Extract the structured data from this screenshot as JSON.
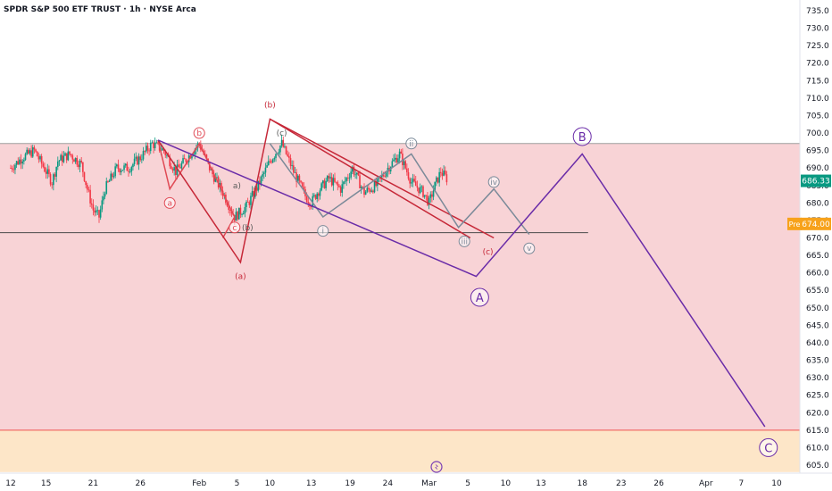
{
  "chart_data": {
    "type": "candlestick",
    "title": "SPDR S&P 500 ETF TRUST · 1h · NYSE Arca",
    "ylim": [
      603,
      738
    ],
    "y_ticks": [
      605,
      610,
      615,
      620,
      625,
      630,
      635,
      640,
      645,
      650,
      655,
      660,
      665,
      670,
      675,
      680,
      685,
      690,
      695,
      700,
      705,
      710,
      715,
      720,
      725,
      730,
      735
    ],
    "x_ticks": [
      {
        "label": "12",
        "t": 0
      },
      {
        "label": "15",
        "t": 3
      },
      {
        "label": "21",
        "t": 7
      },
      {
        "label": "26",
        "t": 11
      },
      {
        "label": "Feb",
        "t": 16
      },
      {
        "label": "5",
        "t": 19.2
      },
      {
        "label": "10",
        "t": 22
      },
      {
        "label": "13",
        "t": 25.5
      },
      {
        "label": "19",
        "t": 28.8
      },
      {
        "label": "24",
        "t": 32
      },
      {
        "label": "Mar",
        "t": 35.5
      },
      {
        "label": "5",
        "t": 38.8
      },
      {
        "label": "10",
        "t": 42
      },
      {
        "label": "13",
        "t": 45
      },
      {
        "label": "18",
        "t": 48.5
      },
      {
        "label": "23",
        "t": 51.8
      },
      {
        "label": "26",
        "t": 55
      },
      {
        "label": "Apr",
        "t": 59
      },
      {
        "label": "7",
        "t": 62
      },
      {
        "label": "10",
        "t": 65
      }
    ],
    "current_price": "686.33",
    "pre_label": "Pre",
    "pre_price": "674.00",
    "zones": [
      {
        "from": 615,
        "to": 697,
        "color": "#f8d3d6"
      },
      {
        "from": 603,
        "to": 615,
        "color": "#fde6c8"
      }
    ],
    "lines": [
      {
        "y": 697,
        "color": "#9e9e9e"
      },
      {
        "y": 615,
        "color": "#ef5350"
      },
      {
        "y": 671.5,
        "color": "#4a4a4a",
        "t_end": 49
      }
    ],
    "price_path": [
      [
        0,
        690
      ],
      [
        1,
        693
      ],
      [
        2,
        695
      ],
      [
        3,
        689
      ],
      [
        3.5,
        686
      ],
      [
        4,
        692
      ],
      [
        5,
        694
      ],
      [
        6,
        691
      ],
      [
        6.5,
        684
      ],
      [
        7,
        678
      ],
      [
        7.5,
        676
      ],
      [
        8,
        684
      ],
      [
        9,
        690
      ],
      [
        10,
        690
      ],
      [
        11,
        693
      ],
      [
        12,
        697
      ],
      [
        13,
        695
      ],
      [
        14,
        689
      ],
      [
        15,
        693
      ],
      [
        16,
        697
      ],
      [
        17,
        689
      ],
      [
        18,
        683
      ],
      [
        19,
        676
      ],
      [
        20,
        679
      ],
      [
        21,
        685
      ],
      [
        22,
        692
      ],
      [
        23,
        697
      ],
      [
        24,
        689
      ],
      [
        25,
        682
      ],
      [
        25.5,
        680
      ],
      [
        26,
        683
      ],
      [
        27,
        687
      ],
      [
        28,
        684
      ],
      [
        29,
        690
      ],
      [
        30,
        683
      ],
      [
        31,
        685
      ],
      [
        32,
        690
      ],
      [
        33,
        694
      ],
      [
        34,
        686
      ],
      [
        35,
        683
      ],
      [
        35.5,
        680
      ],
      [
        36,
        685
      ],
      [
        36.5,
        689
      ],
      [
        37,
        687
      ]
    ],
    "waves": [
      {
        "name": "red-a-b-c",
        "color": "#e04a55",
        "points": [
          [
            12.5,
            698
          ],
          [
            13.5,
            684
          ],
          [
            16,
            697
          ],
          [
            19,
            676
          ],
          [
            18,
            670
          ]
        ]
      },
      {
        "name": "red-major",
        "color": "#c62838",
        "points": [
          [
            12.5,
            698
          ],
          [
            19.5,
            663
          ],
          [
            22,
            704
          ],
          [
            39,
            670
          ]
        ]
      },
      {
        "name": "red-upper-channel",
        "color": "#c62838",
        "points": [
          [
            22,
            704
          ],
          [
            41,
            670
          ]
        ]
      },
      {
        "name": "grey-i-v",
        "color": "#7b8a99",
        "points": [
          [
            22,
            697
          ],
          [
            26.5,
            676
          ],
          [
            34,
            694
          ],
          [
            38,
            673
          ],
          [
            41,
            684
          ],
          [
            44,
            671
          ]
        ]
      },
      {
        "name": "purple-A-B-C",
        "color": "#6a2ca8",
        "points": [
          [
            12.5,
            698
          ],
          [
            39.5,
            659
          ],
          [
            48.5,
            694
          ],
          [
            64,
            616
          ]
        ]
      }
    ],
    "wave_labels": [
      {
        "text": "a",
        "t": 13.5,
        "y": 680,
        "color": "#e04a55",
        "circle": true
      },
      {
        "text": "b",
        "t": 16,
        "y": 700,
        "color": "#e04a55",
        "circle": true
      },
      {
        "text": "c",
        "t": 19,
        "y": 673,
        "color": "#e04a55",
        "circle": true
      },
      {
        "text": "(a)",
        "t": 19.5,
        "y": 659,
        "color": "#c62838",
        "circle": false
      },
      {
        "text": "(b)",
        "t": 22,
        "y": 708,
        "color": "#c62838",
        "circle": false
      },
      {
        "text": "(c)",
        "t": 40.5,
        "y": 666,
        "color": "#c62838",
        "circle": false
      },
      {
        "text": "(c)",
        "t": 23,
        "y": 700,
        "color": "#5a5a5a",
        "circle": false
      },
      {
        "text": "a)",
        "t": 19.2,
        "y": 685,
        "color": "#5a5a5a",
        "circle": false
      },
      {
        "text": "(b)",
        "t": 20.1,
        "y": 673,
        "color": "#5a5a5a",
        "circle": false
      },
      {
        "text": "i",
        "t": 26.5,
        "y": 672,
        "color": "#7b8a99",
        "circle": true
      },
      {
        "text": "ii",
        "t": 34,
        "y": 697,
        "color": "#7b8a99",
        "circle": true
      },
      {
        "text": "iii",
        "t": 38.5,
        "y": 669,
        "color": "#7b8a99",
        "circle": true
      },
      {
        "text": "iv",
        "t": 41,
        "y": 686,
        "color": "#7b8a99",
        "circle": true
      },
      {
        "text": "v",
        "t": 44,
        "y": 667,
        "color": "#7b8a99",
        "circle": true
      },
      {
        "text": "A",
        "t": 39.8,
        "y": 653,
        "color": "#6a2ca8",
        "circle": true
      },
      {
        "text": "B",
        "t": 48.5,
        "y": 699,
        "color": "#6a2ca8",
        "circle": true
      },
      {
        "text": "C",
        "t": 64.3,
        "y": 610,
        "color": "#6a2ca8",
        "circle": true
      }
    ]
  }
}
